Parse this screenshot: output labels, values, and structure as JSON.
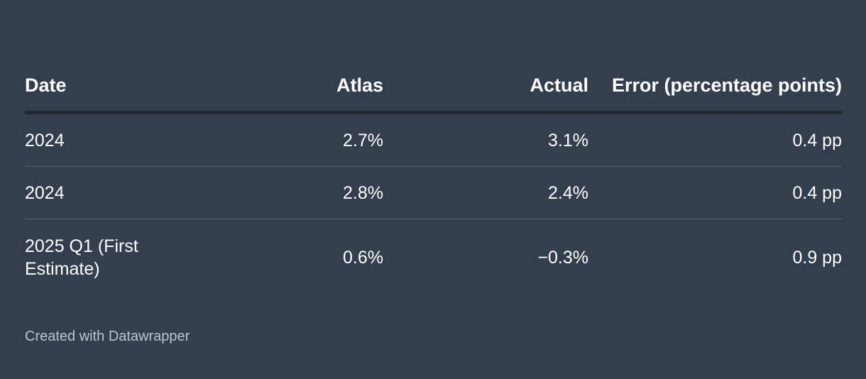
{
  "chart_data": {
    "type": "table",
    "columns": [
      "Date",
      "Atlas",
      "Actual",
      "Error (percentage points)"
    ],
    "rows": [
      [
        "2024",
        "2.7%",
        "3.1%",
        "0.4 pp"
      ],
      [
        "2024",
        "2.8%",
        "2.4%",
        "0.4 pp"
      ],
      [
        "2025 Q1 (First Estimate)",
        "0.6%",
        "−0.3%",
        "0.9 pp"
      ]
    ],
    "footer": "Created with Datawrapper"
  },
  "colors": {
    "background": "#333e4e",
    "text": "#ffffff",
    "header_rule": "#23282f",
    "row_divider": "#52606f",
    "footer_text": "#bcc3cc"
  }
}
